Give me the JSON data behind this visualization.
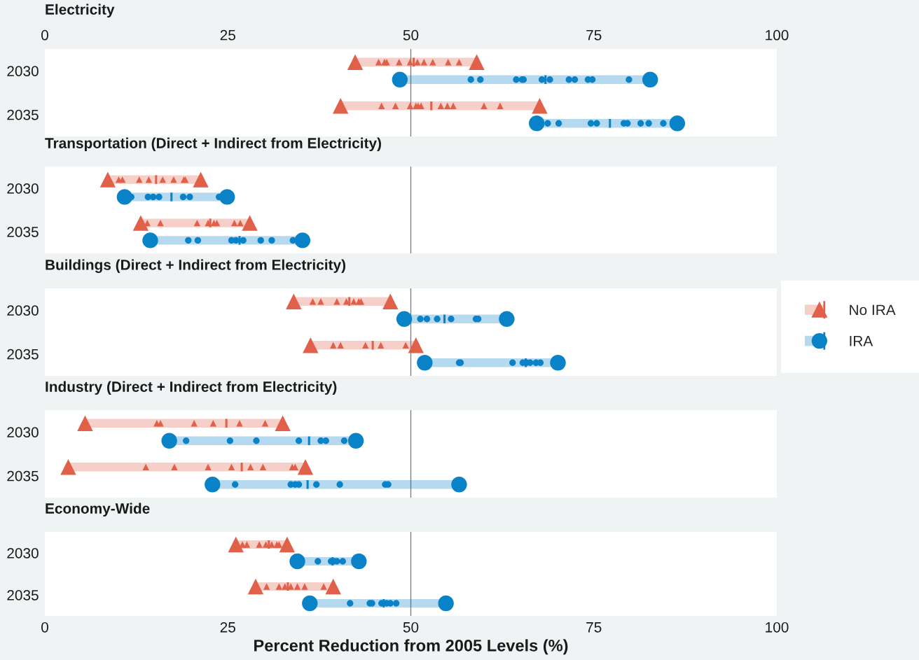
{
  "chart_data": [
    {
      "type": "box",
      "orientation": "horizontal",
      "title": "Electricity",
      "categories": [
        "2030",
        "2035"
      ],
      "xlim": [
        0,
        100
      ],
      "xticks": [
        0,
        25,
        50,
        75,
        100
      ],
      "legend": "right",
      "ref_lines": [
        {
          "axis": "x",
          "value": 50,
          "color": "#808080"
        }
      ],
      "series": [
        {
          "name": "No IRA",
          "color": "#e0604a",
          "marker": "triangle",
          "boxes": [
            {
              "low": 42.4,
              "q1": 42.4,
              "median": 50.4,
              "q3": 59.0,
              "high": 59.0,
              "outliers": [
                42.4,
                45.6,
                46.4,
                46.7,
                48.4,
                49.9,
                50.9,
                51.8,
                53.0,
                55.1,
                56.6,
                59.0
              ]
            },
            {
              "low": 40.4,
              "q1": 40.4,
              "median": 52.8,
              "q3": 67.6,
              "high": 67.6,
              "outliers": [
                40.4,
                46.0,
                47.9,
                49.9,
                50.7,
                51.0,
                51.4,
                54.1,
                55.0,
                55.8,
                60.0,
                62.2,
                67.6
              ]
            }
          ]
        },
        {
          "name": "IRA",
          "color": "#0a82c8",
          "marker": "circle",
          "boxes": [
            {
              "low": 48.5,
              "q1": 48.5,
              "median": 68.4,
              "q3": 82.7,
              "high": 82.7,
              "outliers": [
                48.5,
                58.2,
                59.5,
                64.4,
                65.2,
                65.4,
                67.9,
                69.0,
                71.6,
                72.4,
                74.2,
                74.8,
                79.8,
                82.7
              ]
            },
            {
              "low": 67.2,
              "q1": 67.2,
              "median": 77.2,
              "q3": 86.4,
              "high": 86.4,
              "outliers": [
                67.2,
                68.7,
                70.2,
                74.6,
                75.4,
                79.1,
                79.6,
                81.4,
                82.5,
                84.5,
                86.4
              ]
            }
          ]
        }
      ]
    },
    {
      "type": "box",
      "orientation": "horizontal",
      "title": "Transportation (Direct + Indirect from Electricity)",
      "categories": [
        "2030",
        "2035"
      ],
      "xlim": [
        0,
        100
      ],
      "tick_labels": "y",
      "ref_lines": [
        {
          "axis": "x",
          "value": 50,
          "color": "#808080"
        }
      ],
      "series": [
        {
          "color": "#e0604a",
          "marker": "triangle",
          "boxes": [
            {
              "low": 8.6,
              "q1": 8.6,
              "median": 15.2,
              "q3": 21.3,
              "high": 21.3,
              "outliers": [
                8.6,
                10.1,
                10.6,
                12.9,
                14.2,
                16.1,
                17.6,
                19.0,
                19.2,
                21.3
              ]
            },
            {
              "low": 13.1,
              "q1": 13.1,
              "median": 22.6,
              "q3": 28.0,
              "high": 28.0,
              "outliers": [
                13.1,
                14.0,
                15.8,
                20.8,
                22.3,
                23.1,
                23.5,
                25.9,
                26.7,
                28.0
              ]
            }
          ]
        },
        {
          "color": "#0a82c8",
          "marker": "circle",
          "boxes": [
            {
              "low": 10.9,
              "q1": 10.9,
              "median": 17.3,
              "q3": 24.9,
              "high": 24.9,
              "outliers": [
                10.9,
                11.8,
                14.1,
                14.8,
                15.6,
                18.9,
                19.8,
                23.8,
                24.9
              ]
            },
            {
              "low": 14.4,
              "q1": 14.4,
              "median": 26.6,
              "q3": 35.2,
              "high": 35.2,
              "outliers": [
                14.4,
                19.6,
                20.9,
                25.5,
                26.1,
                27.1,
                29.5,
                31.0,
                33.9,
                35.2
              ]
            }
          ]
        }
      ]
    },
    {
      "type": "box",
      "orientation": "horizontal",
      "title": "Buildings (Direct + Indirect from Electricity)",
      "categories": [
        "2030",
        "2035"
      ],
      "xlim": [
        0,
        100
      ],
      "tick_labels": "y",
      "ref_lines": [
        {
          "axis": "x",
          "value": 50,
          "color": "#808080"
        }
      ],
      "series": [
        {
          "color": "#e0604a",
          "marker": "triangle",
          "boxes": [
            {
              "low": 34.0,
              "q1": 34.0,
              "median": 41.6,
              "q3": 47.2,
              "high": 47.2,
              "outliers": [
                34.0,
                36.6,
                37.7,
                39.9,
                41.2,
                42.2,
                42.9,
                43.2,
                47.2
              ]
            },
            {
              "low": 36.3,
              "q1": 36.3,
              "median": 44.8,
              "q3": 50.7,
              "high": 50.7,
              "outliers": [
                36.3,
                39.4,
                40.4,
                43.8,
                45.9,
                49.3,
                50.7
              ]
            }
          ]
        },
        {
          "color": "#0a82c8",
          "marker": "circle",
          "boxes": [
            {
              "low": 49.1,
              "q1": 49.1,
              "median": 54.6,
              "q3": 63.1,
              "high": 63.1,
              "outliers": [
                49.1,
                51.3,
                52.2,
                53.6,
                55.5,
                58.9,
                59.2,
                63.1
              ]
            },
            {
              "low": 51.9,
              "q1": 51.9,
              "median": 65.7,
              "q3": 70.1,
              "high": 70.1,
              "outliers": [
                51.9,
                56.6,
                56.8,
                63.9,
                65.3,
                65.8,
                66.3,
                67.1,
                67.7,
                70.1
              ]
            }
          ]
        }
      ]
    },
    {
      "type": "box",
      "orientation": "horizontal",
      "title": "Industry (Direct + Indirect from Electricity)",
      "categories": [
        "2030",
        "2035"
      ],
      "xlim": [
        0,
        100
      ],
      "tick_labels": "y",
      "ref_lines": [
        {
          "axis": "x",
          "value": 50,
          "color": "#808080"
        }
      ],
      "series": [
        {
          "color": "#e0604a",
          "marker": "triangle",
          "boxes": [
            {
              "low": 5.5,
              "q1": 5.5,
              "median": 24.8,
              "q3": 32.5,
              "high": 32.5,
              "outliers": [
                5.5,
                15.3,
                15.8,
                20.4,
                23.0,
                26.6,
                30.1,
                32.5
              ]
            },
            {
              "low": 3.2,
              "q1": 3.2,
              "median": 26.9,
              "q3": 35.6,
              "high": 35.6,
              "outliers": [
                3.2,
                13.8,
                17.7,
                22.3,
                25.5,
                28.1,
                29.8,
                33.8,
                34.2,
                35.6
              ]
            }
          ]
        },
        {
          "color": "#0a82c8",
          "marker": "circle",
          "boxes": [
            {
              "low": 17.0,
              "q1": 17.0,
              "median": 36.1,
              "q3": 42.5,
              "high": 42.5,
              "outliers": [
                17.0,
                19.3,
                25.3,
                28.9,
                34.7,
                37.7,
                38.4,
                40.9,
                42.5
              ]
            },
            {
              "low": 22.9,
              "q1": 22.9,
              "median": 35.9,
              "q3": 56.6,
              "high": 56.6,
              "outliers": [
                22.9,
                26.0,
                33.6,
                34.2,
                34.7,
                37.1,
                40.3,
                46.5,
                46.9,
                56.6
              ]
            }
          ]
        }
      ]
    },
    {
      "type": "box",
      "orientation": "horizontal",
      "title": "Economy-Wide",
      "categories": [
        "2030",
        "2035"
      ],
      "xlim": [
        0,
        100
      ],
      "xticks": [
        0,
        25,
        50,
        75,
        100
      ],
      "xlabel": "Percent Reduction from 2005 Levels (%)",
      "ref_lines": [
        {
          "axis": "x",
          "value": 50,
          "color": "#808080"
        }
      ],
      "series": [
        {
          "color": "#e0604a",
          "marker": "triangle",
          "boxes": [
            {
              "low": 26.1,
              "q1": 26.1,
              "median": 30.6,
              "q3": 33.1,
              "high": 33.1,
              "outliers": [
                26.1,
                27.0,
                27.6,
                29.3,
                30.2,
                31.0,
                31.7,
                32.0,
                33.1
              ]
            },
            {
              "low": 28.8,
              "q1": 28.8,
              "median": 33.2,
              "q3": 39.4,
              "high": 39.4,
              "outliers": [
                28.8,
                30.3,
                32.0,
                32.8,
                33.6,
                34.5,
                35.5,
                38.1,
                39.4
              ]
            }
          ]
        },
        {
          "color": "#0a82c8",
          "marker": "circle",
          "boxes": [
            {
              "low": 34.5,
              "q1": 34.5,
              "median": 39.3,
              "q3": 42.9,
              "high": 42.9,
              "outliers": [
                34.5,
                37.3,
                39.1,
                39.5,
                39.9,
                40.7,
                42.9
              ]
            },
            {
              "low": 36.2,
              "q1": 36.2,
              "median": 46.3,
              "q3": 54.8,
              "high": 54.8,
              "outliers": [
                36.2,
                41.7,
                44.4,
                44.7,
                46.0,
                46.7,
                47.2,
                48.0,
                54.8
              ]
            }
          ]
        }
      ]
    }
  ]
}
